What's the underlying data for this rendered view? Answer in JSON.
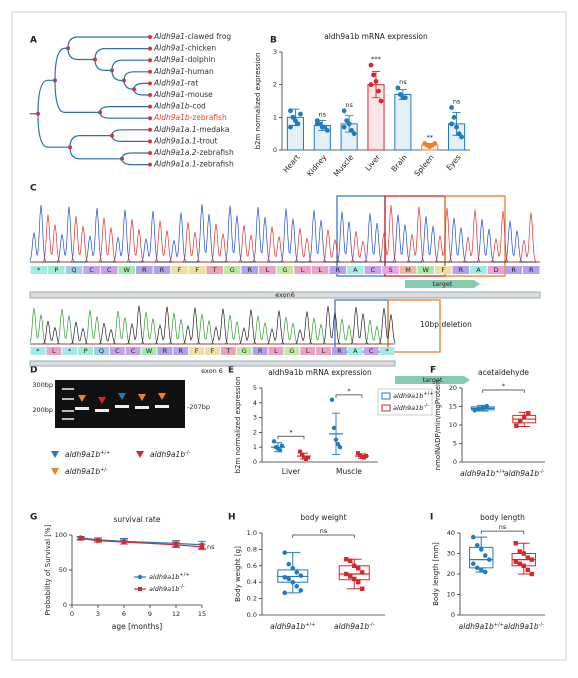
{
  "panel_labels": [
    "A",
    "B",
    "C",
    "D",
    "E",
    "F",
    "G",
    "H",
    "I"
  ],
  "tree": {
    "leaves": [
      {
        "gene": "Aldh9a1",
        "species": "-clawed frog",
        "color": "#333333"
      },
      {
        "gene": "Aldh9a1",
        "species": "-chicken",
        "color": "#333333"
      },
      {
        "gene": "Aldh9a1",
        "species": "-dolphin",
        "color": "#333333"
      },
      {
        "gene": "Aldh9a1",
        "species": "-human",
        "color": "#333333"
      },
      {
        "gene": "Aldh9a1",
        "species": "-rat",
        "color": "#333333"
      },
      {
        "gene": "Aldh9a1",
        "species": "-mouse",
        "color": "#333333"
      },
      {
        "gene": "Aldh9a1b",
        "species": "-cod",
        "color": "#333333"
      },
      {
        "gene": "Aldh9a1b",
        "species": "-zebrafish",
        "color": "#e8432e"
      },
      {
        "gene": "Aldh9a1a.1",
        "species": "-medaka",
        "color": "#333333"
      },
      {
        "gene": "Aldh9a1a.1",
        "species": "-trout",
        "color": "#333333"
      },
      {
        "gene": "Aldh9a1a.2",
        "species": "-zebrafish",
        "color": "#333333"
      },
      {
        "gene": "Aldh9a1a.1",
        "species": "-zebrafish",
        "color": "#333333"
      }
    ]
  },
  "sequencing": {
    "wild_type": {
      "residues": [
        "*",
        "P",
        "Q",
        "C",
        "C",
        "W",
        "R",
        "R",
        "F",
        "F",
        "T",
        "G",
        "R",
        "L",
        "G",
        "L",
        "L",
        "R",
        "A",
        "C",
        "S",
        "M",
        "W",
        "F",
        "R",
        "A",
        "D",
        "R",
        "R"
      ],
      "exon_label": "exon6",
      "target_label": "target"
    },
    "mutant": {
      "residues": [
        "*",
        "L",
        "*",
        "P",
        "Q",
        "C",
        "C",
        "W",
        "R",
        "R",
        "F",
        "F",
        "T",
        "G",
        "R",
        "L",
        "G",
        "L",
        "L",
        "R",
        "A",
        "C",
        "*"
      ],
      "exon_label": "exon 6",
      "target_label": "target",
      "annotation": "10bp deletion"
    }
  },
  "gel": {
    "ladder_labels": [
      "300bp",
      "200bp"
    ],
    "band_label": "-207bp",
    "legend": [
      {
        "gene": "aldh9a1b",
        "genotype": "+/+",
        "color": "#1f7bbf"
      },
      {
        "gene": "aldh9a1b",
        "genotype": "-/-",
        "color": "#d7262b"
      },
      {
        "gene": "aldh9a1b",
        "genotype": "+/-",
        "color": "#f07f22"
      }
    ]
  },
  "chart_data": [
    {
      "type": "bar",
      "title": "aldh9a1b mRNA expression",
      "ylabel": "b2m normalized expression",
      "categories": [
        "Heart",
        "Kidney",
        "Muscle",
        "Liver",
        "Brain",
        "Spleen",
        "Eyes"
      ],
      "values": [
        1.0,
        0.75,
        0.8,
        2.0,
        1.7,
        0.15,
        0.8
      ],
      "errors": [
        0.25,
        0.15,
        0.25,
        0.4,
        0.15,
        0.05,
        0.35
      ],
      "points": [
        [
          1.2,
          1.0,
          0.9,
          0.8,
          1.1,
          0.7
        ],
        [
          0.9,
          0.8,
          0.7,
          0.7,
          0.6,
          0.8
        ],
        [
          1.2,
          0.9,
          0.8,
          0.6,
          0.5,
          0.7
        ],
        [
          2.6,
          2.3,
          2.1,
          1.8,
          1.5,
          2.0
        ],
        [
          1.9,
          1.7,
          1.6,
          1.6
        ],
        [
          0.2,
          0.15,
          0.1,
          0.15,
          0.2
        ],
        [
          1.3,
          1.0,
          0.7,
          0.5,
          0.4,
          0.8
        ]
      ],
      "colors": [
        "#1f7bbf",
        "#1f7bbf",
        "#1f7bbf",
        "#d7262b",
        "#1f7bbf",
        "#f07f22",
        "#1f7bbf"
      ],
      "significance": [
        null,
        "ns",
        "ns",
        "***",
        "ns",
        "**",
        "ns"
      ],
      "ylim": [
        0,
        3
      ],
      "yticks": [
        0,
        1,
        2,
        3
      ]
    },
    {
      "type": "dot",
      "title": "aldh9a1b mRNA expression",
      "ylabel": "b2m normalized expression",
      "categories": [
        "Liver",
        "Muscle"
      ],
      "series": [
        {
          "name": "aldh9a1b",
          "genotype": "+/+",
          "color": "#1f7bbf",
          "values": [
            1.0,
            1.9
          ],
          "errors": [
            0.3,
            1.4
          ],
          "points": [
            [
              1.4,
              1.0,
              0.9,
              0.8,
              1.1
            ],
            [
              4.2,
              2.3,
              1.5,
              1.2,
              1.0
            ]
          ]
        },
        {
          "name": "aldh9a1b",
          "genotype": "-/-",
          "color": "#d7262b",
          "values": [
            0.4,
            0.4
          ],
          "errors": [
            0.2,
            0.15
          ],
          "points": [
            [
              0.7,
              0.5,
              0.3,
              0.2,
              0.3
            ],
            [
              0.6,
              0.45,
              0.35,
              0.3,
              0.4
            ]
          ]
        }
      ],
      "significance": [
        "*",
        "*"
      ],
      "legend": "upper right",
      "ylim": [
        0,
        5
      ],
      "yticks": [
        0,
        1,
        2,
        3,
        4,
        5
      ]
    },
    {
      "type": "box",
      "title": "acetaldehyde",
      "ylabel": "nmolNADP/min/mgProtein",
      "groups": [
        {
          "name": "aldh9a1b",
          "genotype": "+/+",
          "color": "#1f7bbf",
          "min": 13.8,
          "q1": 14.1,
          "median": 14.5,
          "q3": 14.9,
          "max": 15.3,
          "points": [
            14.0,
            14.4,
            14.6,
            15.1
          ]
        },
        {
          "name": "aldh9a1b",
          "genotype": "-/-",
          "color": "#d7262b",
          "min": 9.6,
          "q1": 10.6,
          "median": 11.6,
          "q3": 12.6,
          "max": 13.4,
          "points": [
            9.8,
            11.0,
            12.2,
            13.2
          ]
        }
      ],
      "significance": "*",
      "ylim": [
        0,
        20
      ],
      "yticks": [
        0,
        5,
        10,
        15,
        20
      ]
    },
    {
      "type": "line",
      "title": "survival rate",
      "xlabel": "age [months]",
      "ylabel": "Probability of Survival [%]",
      "x": [
        1,
        3,
        6,
        12,
        15
      ],
      "series": [
        {
          "name": "aldh9a1b",
          "genotype": "+/+",
          "color": "#1f7bbf",
          "values": [
            96,
            93,
            91,
            88,
            86
          ],
          "errors": [
            2,
            3,
            4,
            4,
            5
          ]
        },
        {
          "name": "aldh9a1b",
          "genotype": "-/-",
          "color": "#d7262b",
          "values": [
            95,
            92,
            90,
            86,
            83
          ],
          "errors": [
            2,
            2,
            3,
            4,
            4
          ]
        }
      ],
      "annotation": "ns",
      "legend": "lower right",
      "xlim": [
        0,
        15
      ],
      "xticks": [
        0,
        3,
        6,
        9,
        12,
        15
      ],
      "ylim": [
        0,
        100
      ],
      "yticks": [
        0,
        50,
        100
      ]
    },
    {
      "type": "box",
      "title": "body weight",
      "ylabel": "Body weight [g]",
      "groups": [
        {
          "name": "aldh9a1b",
          "genotype": "+/+",
          "color": "#1f7bbf",
          "min": 0.27,
          "q1": 0.4,
          "median": 0.47,
          "q3": 0.55,
          "max": 0.76,
          "points": [
            0.76,
            0.62,
            0.57,
            0.52,
            0.48,
            0.46,
            0.44,
            0.4,
            0.35,
            0.3,
            0.27
          ]
        },
        {
          "name": "aldh9a1b",
          "genotype": "-/-",
          "color": "#d7262b",
          "min": 0.32,
          "q1": 0.43,
          "median": 0.5,
          "q3": 0.6,
          "max": 0.68,
          "points": [
            0.68,
            0.66,
            0.6,
            0.57,
            0.52,
            0.5,
            0.47,
            0.44,
            0.4,
            0.32
          ]
        }
      ],
      "significance": "ns",
      "ylim": [
        0,
        1
      ],
      "yticks": [
        {
          "value": 0,
          "label": "0.0"
        },
        0.2,
        0.4,
        0.6,
        0.8,
        {
          "value": 1,
          "label": "1.0"
        }
      ]
    },
    {
      "type": "box",
      "title": "body length",
      "ylabel": "Body length [mm]",
      "groups": [
        {
          "name": "aldh9a1b",
          "genotype": "+/+",
          "color": "#1f7bbf",
          "min": 21,
          "q1": 23,
          "median": 27,
          "q3": 33,
          "max": 38,
          "points": [
            38,
            34,
            32,
            29,
            27,
            25,
            23,
            22,
            21
          ]
        },
        {
          "name": "aldh9a1b",
          "genotype": "-/-",
          "color": "#d7262b",
          "min": 20,
          "q1": 24,
          "median": 27,
          "q3": 30,
          "max": 35,
          "points": [
            35,
            31,
            30,
            28,
            27,
            26,
            25,
            24,
            22,
            20
          ]
        }
      ],
      "significance": "ns",
      "ylim": [
        0,
        40
      ],
      "yticks": [
        0,
        10,
        20,
        30,
        40
      ]
    }
  ]
}
